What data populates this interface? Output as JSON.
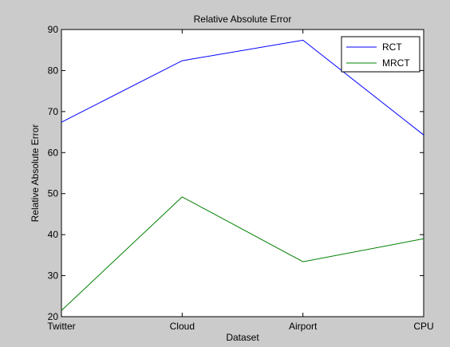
{
  "figure": {
    "background": "#cbcbcb",
    "axes_background": "#ffffff"
  },
  "chart_data": {
    "type": "line",
    "title": "Relative Absolute Error",
    "xlabel": "Dataset",
    "ylabel": "Relative Absolute Error",
    "categories": [
      "Twitter",
      "Cloud",
      "Airport",
      "CPU"
    ],
    "ylim": [
      20,
      90
    ],
    "yticks": [
      20,
      30,
      40,
      50,
      60,
      70,
      80,
      90
    ],
    "grid": false,
    "legend_position": "top-right",
    "series": [
      {
        "name": "RCT",
        "color": "#0000ff",
        "values": [
          67.4,
          82.4,
          87.4,
          64.3
        ]
      },
      {
        "name": "MRCT",
        "color": "#008000",
        "values": [
          21.5,
          49.2,
          33.4,
          39.0
        ]
      }
    ]
  }
}
